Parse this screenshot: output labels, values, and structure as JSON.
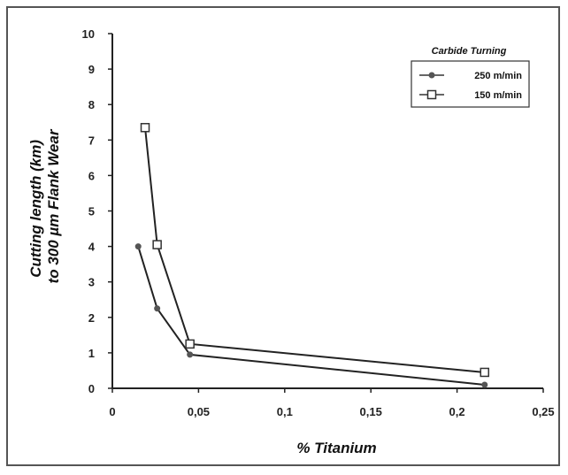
{
  "chart_data": {
    "type": "line",
    "title": "",
    "xlabel": "% Titanium",
    "ylabel_lines": [
      "Cutting length (km)",
      "to 300 µm Flank Wear"
    ],
    "xlim": [
      0,
      0.25
    ],
    "ylim": [
      0,
      10
    ],
    "xticks": [
      0,
      0.05,
      0.1,
      0.15,
      0.2,
      0.25
    ],
    "xtick_labels": [
      "0",
      "0,05",
      "0,1",
      "0,15",
      "0,2",
      "0,25"
    ],
    "yticks": [
      0,
      1,
      2,
      3,
      4,
      5,
      6,
      7,
      8,
      9,
      10
    ],
    "ytick_labels": [
      "0",
      "1",
      "2",
      "3",
      "4",
      "5",
      "6",
      "7",
      "8",
      "9",
      "10"
    ],
    "grid": false,
    "legend_position": "top-right",
    "legend_title": "Carbide Turning",
    "series": [
      {
        "name": "250 m/min",
        "marker": "dot",
        "color": "#555555",
        "x": [
          0.015,
          0.026,
          0.045,
          0.216
        ],
        "y": [
          4.0,
          2.25,
          0.95,
          0.1
        ]
      },
      {
        "name": "150 m/min",
        "marker": "open-square",
        "color": "#333333",
        "x": [
          0.019,
          0.026,
          0.045,
          0.216
        ],
        "y": [
          7.35,
          4.05,
          1.25,
          0.45
        ]
      }
    ]
  }
}
